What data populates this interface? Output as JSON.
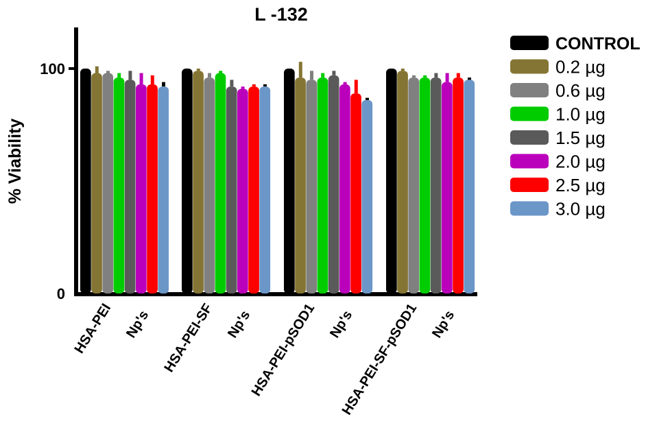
{
  "chart_data": {
    "type": "bar",
    "title": "L -132",
    "ylabel": "% Viability",
    "xlabel": "",
    "ylim": [
      0,
      120
    ],
    "yticks": [
      "0",
      "100"
    ],
    "legend_position": "right",
    "grid": false,
    "categories": [
      [
        "HSA-PEI",
        "Np's"
      ],
      [
        "HSA-PEI-SF",
        "Np's"
      ],
      [
        "HSA-PEI-pSOD1",
        "Np's"
      ],
      [
        "HSA-PEI-SF-pSOD1",
        "Np's"
      ]
    ],
    "series": [
      {
        "name": "CONTROL",
        "color": "#000000",
        "values": [
          100,
          100,
          100,
          100
        ],
        "errors": [
          0,
          0,
          0,
          0
        ]
      },
      {
        "name": "0.2 µg",
        "color": "#857534",
        "values": [
          98,
          99,
          96,
          99
        ],
        "errors": [
          3,
          1,
          7,
          1
        ]
      },
      {
        "name": "0.6 µg",
        "color": "#808080",
        "values": [
          98,
          96,
          95,
          96
        ],
        "errors": [
          1,
          2,
          4,
          1
        ]
      },
      {
        "name": "1.0 µg",
        "color": "#00cc00",
        "values": [
          96,
          98,
          96,
          96
        ],
        "errors": [
          2,
          1,
          2,
          1
        ]
      },
      {
        "name": "1.5 µg",
        "color": "#5a5a5a",
        "values": [
          95,
          92,
          97,
          96
        ],
        "errors": [
          4,
          3,
          2,
          2
        ]
      },
      {
        "name": "2.0 µg",
        "color": "#bb00bb",
        "values": [
          93,
          91,
          93,
          94
        ],
        "errors": [
          5,
          1,
          1,
          4
        ]
      },
      {
        "name": "2.5 µg",
        "color": "#ff0000",
        "values": [
          93,
          92,
          89,
          96
        ],
        "errors": [
          4,
          1,
          6,
          2
        ]
      },
      {
        "name": "3.0 µg",
        "color": "#6b96c8",
        "values": [
          92,
          92,
          86,
          95
        ],
        "errors": [
          2,
          1,
          1,
          1
        ]
      }
    ]
  }
}
